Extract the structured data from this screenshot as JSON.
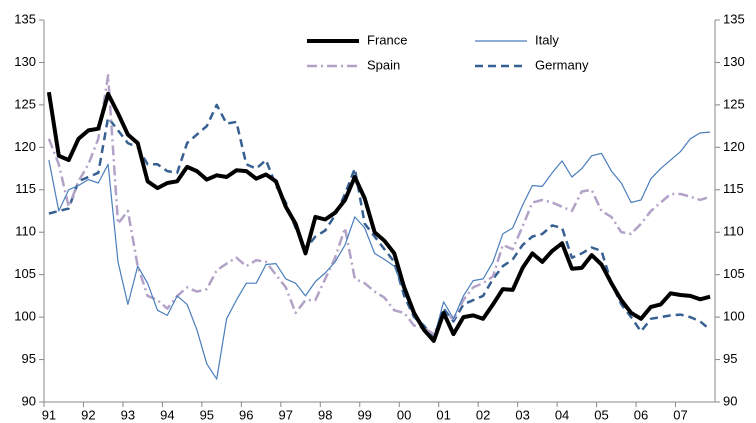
{
  "chart_data": {
    "type": "line",
    "categories": [
      "91",
      null,
      null,
      null,
      "92",
      null,
      null,
      null,
      "93",
      null,
      null,
      null,
      "94",
      null,
      null,
      null,
      "95",
      null,
      null,
      null,
      "96",
      null,
      null,
      null,
      "97",
      null,
      null,
      null,
      "98",
      null,
      null,
      null,
      "99",
      null,
      null,
      null,
      "00",
      null,
      null,
      null,
      "01",
      null,
      null,
      null,
      "02",
      null,
      null,
      null,
      "03",
      null,
      null,
      null,
      "04",
      null,
      null,
      null,
      "05",
      null,
      null,
      null,
      "06",
      null,
      null,
      null,
      "07",
      null,
      null,
      null
    ],
    "series": [
      {
        "name": "France",
        "color": "#000000",
        "width": 4,
        "dash": "solid",
        "values": [
          126.5,
          119,
          118.5,
          121,
          122,
          122.2,
          126.3,
          124,
          121.5,
          120.5,
          116,
          115.2,
          115.8,
          116,
          117.7,
          117.2,
          116.2,
          116.7,
          116.5,
          117.3,
          117.2,
          116.3,
          116.8,
          116,
          113,
          111,
          107.5,
          111.8,
          111.5,
          112.3,
          113.8,
          116.5,
          114,
          110,
          109,
          107.5,
          103.5,
          100.5,
          98.5,
          97.2,
          100.5,
          98,
          100,
          100.2,
          99.8,
          101.5,
          103.3,
          103.2,
          105.8,
          107.5,
          106.5,
          107.8,
          108.7,
          105.7,
          105.8,
          107.3,
          106.2,
          104,
          102,
          100.5,
          99.8,
          101.2,
          101.5,
          102.8,
          102.6,
          102.5,
          102.1,
          102.4
        ]
      },
      {
        "name": "Italy",
        "color": "#4a7ebb",
        "width": 1.2,
        "dash": "solid",
        "values": [
          118.5,
          112.5,
          115,
          115.5,
          116.2,
          115.8,
          118,
          106.5,
          101.5,
          106,
          104,
          100.8,
          100.2,
          102.5,
          101.5,
          98.5,
          94.5,
          92.7,
          99.8,
          102,
          104,
          104,
          106.2,
          106.3,
          104.5,
          104,
          102.5,
          104.2,
          105.2,
          106.5,
          108.5,
          111.8,
          110.5,
          107.5,
          106.8,
          106,
          103,
          100,
          98.5,
          97.5,
          101.8,
          99.8,
          102.5,
          104.3,
          104.5,
          106.5,
          109.8,
          110.5,
          113.2,
          115.5,
          115.4,
          117,
          118.4,
          116.5,
          117.5,
          119,
          119.3,
          117.2,
          115.8,
          113.5,
          113.8,
          116.3,
          117.5,
          118.5,
          119.5,
          121,
          121.7,
          121.8
        ]
      },
      {
        "name": "Spain",
        "color": "#b3a2c7",
        "width": 2.5,
        "dash": "dashdot",
        "values": [
          121,
          118,
          113,
          116,
          118,
          121,
          128.5,
          111,
          112.5,
          106,
          102.5,
          102,
          101,
          102.5,
          103.5,
          103,
          103.3,
          105.5,
          106.3,
          107,
          106,
          106.7,
          106.5,
          105,
          103.5,
          100.5,
          102,
          102,
          104.5,
          107,
          110.5,
          104.5,
          104,
          103,
          102.3,
          100.8,
          100.5,
          99,
          98.7,
          98,
          100.5,
          99.8,
          102,
          103.5,
          104,
          104.8,
          108.5,
          108,
          110.7,
          113.5,
          113.8,
          113.5,
          113,
          112.5,
          114.8,
          115,
          112.5,
          111.8,
          110,
          109.8,
          111,
          112.5,
          113.5,
          114.5,
          114.5,
          114.2,
          113.8,
          114.2
        ]
      },
      {
        "name": "Germany",
        "color": "#376092",
        "width": 2.5,
        "dash": "dash",
        "values": [
          112.2,
          112.5,
          112.8,
          116,
          116.5,
          117,
          123.5,
          122,
          120.5,
          120,
          118,
          118,
          117.2,
          117,
          120.5,
          121.5,
          122.5,
          125,
          122.8,
          123,
          118,
          117.5,
          118.5,
          115.5,
          113.5,
          110.5,
          108,
          109.5,
          110.2,
          112,
          114.5,
          117.5,
          111,
          109.5,
          108,
          106.5,
          102.5,
          100,
          99,
          97.5,
          101,
          99.5,
          101.5,
          102,
          102.5,
          104.5,
          106,
          106.8,
          108.5,
          109.5,
          109.8,
          110.8,
          110.5,
          107,
          107.5,
          108.2,
          107.8,
          104,
          101.5,
          100,
          98.3,
          99.8,
          100,
          100.2,
          100.3,
          100,
          99.5,
          98.5
        ]
      }
    ],
    "ylim": [
      90,
      135
    ],
    "yticks": [
      90,
      95,
      100,
      105,
      110,
      115,
      120,
      125,
      130,
      135
    ],
    "y2lim": [
      90,
      135
    ],
    "y2ticks": [
      90,
      95,
      100,
      105,
      110,
      115,
      120,
      125,
      130,
      135
    ],
    "grid": false,
    "legend": "top"
  }
}
